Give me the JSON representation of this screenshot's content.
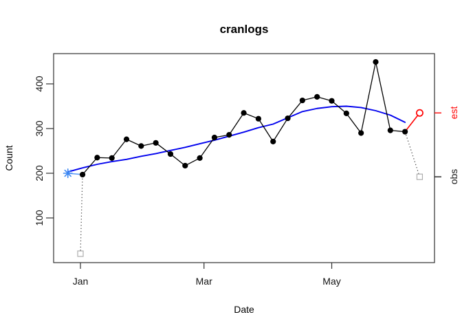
{
  "chart_data": {
    "type": "line",
    "title": "cranlogs",
    "xlabel": "Date",
    "ylabel": "Count",
    "frame_color": "#2e2e2e",
    "x_axis": {
      "ticks": [
        {
          "label": "Jan",
          "day": 0
        },
        {
          "label": "Mar",
          "day": 59
        },
        {
          "label": "May",
          "day": 120
        }
      ],
      "range_days": [
        -13,
        169
      ],
      "grid": false
    },
    "y_axis": {
      "ticks": [
        100,
        200,
        300,
        400
      ],
      "range": [
        0,
        468
      ],
      "grid": false
    },
    "right_axis_ticks": [
      {
        "label": "est",
        "count": 335,
        "color": "#FF0000"
      },
      {
        "label": "obs",
        "count": 192,
        "color": "#1a1a1a"
      }
    ],
    "series": [
      {
        "name": "observed-weekly-counts",
        "color": "#000000",
        "marker": "filled-circle",
        "line_style": "solid",
        "x_days": [
          1,
          8,
          15,
          22,
          29,
          36,
          43,
          50,
          57,
          64,
          71,
          78,
          85,
          92,
          99,
          106,
          113,
          120,
          127,
          134,
          141,
          148,
          155
        ],
        "values": [
          197,
          235,
          234,
          276,
          261,
          268,
          243,
          217,
          234,
          280,
          286,
          335,
          322,
          271,
          323,
          363,
          371,
          362,
          334,
          290,
          449,
          296,
          293
        ]
      },
      {
        "name": "smooth-trend",
        "color": "#0000EE",
        "marker": "none",
        "line_style": "solid",
        "x_days": [
          -6,
          1,
          8,
          15,
          22,
          29,
          36,
          43,
          50,
          57,
          64,
          71,
          78,
          85,
          92,
          99,
          106,
          113,
          120,
          127,
          134,
          141,
          148,
          155
        ],
        "values": [
          203,
          212,
          220,
          226,
          231,
          238,
          244,
          251,
          258,
          266,
          274,
          283,
          292,
          302,
          310,
          324,
          338,
          345,
          349,
          350,
          347,
          340,
          330,
          314
        ]
      }
    ],
    "annotations": [
      {
        "name": "series-start-marker",
        "shape": "asterisk",
        "color": "#3B87F2",
        "day": -6,
        "count": 200,
        "connector": {
          "to": "first-observed",
          "style": "solid",
          "color": "#5B9BF8"
        }
      },
      {
        "name": "partial-first-week",
        "shape": "open-square",
        "color": "#ADADAD",
        "day": 0,
        "count": 20,
        "connector": {
          "to": "first-observed",
          "style": "dotted",
          "color": "#3c3c3c"
        }
      },
      {
        "name": "forecast-estimate",
        "label": "est",
        "shape": "open-circle",
        "color": "#FF0000",
        "day": 162,
        "count": 335,
        "connector": {
          "to": "last-observed",
          "style": "solid",
          "color": "#FF0000"
        }
      },
      {
        "name": "next-week-observed",
        "label": "obs",
        "shape": "open-square",
        "color": "#ADADAD",
        "day": 162,
        "count": 192,
        "connector": {
          "to": "last-observed",
          "style": "dotted",
          "color": "#3c3c3c"
        }
      }
    ]
  }
}
